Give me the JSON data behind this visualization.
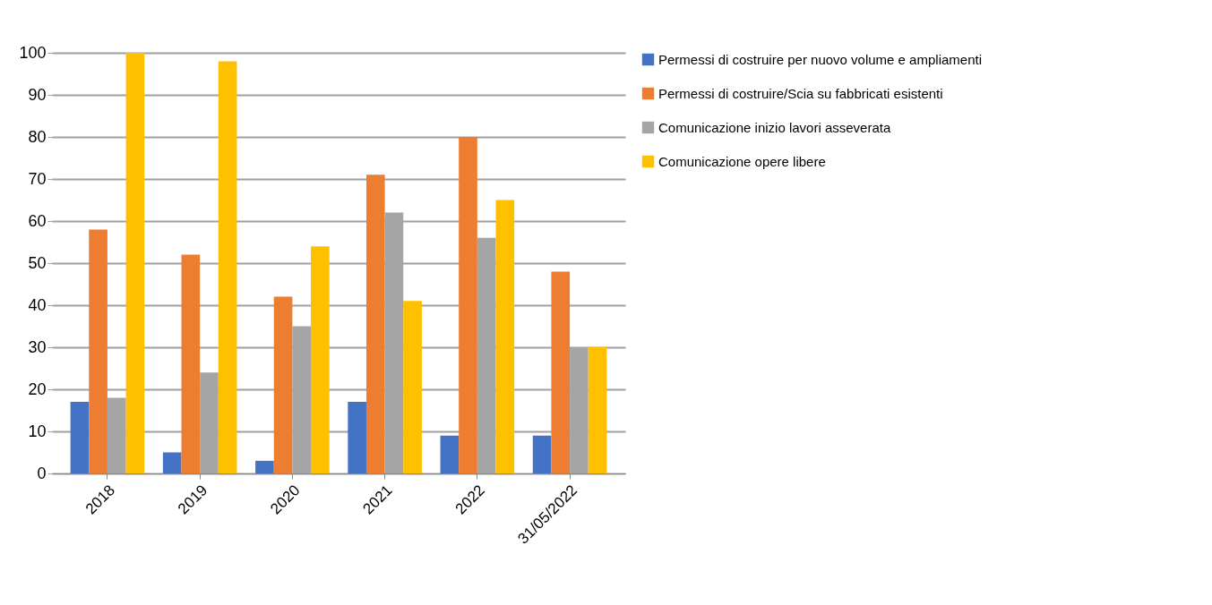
{
  "chart_data": {
    "type": "bar",
    "categories": [
      "2018",
      "2019",
      "2020",
      "2021",
      "2022",
      "31/05/2022"
    ],
    "series": [
      {
        "name": "Permessi di costruire per nuovo volume e ampliamenti",
        "color": "#4472c4",
        "values": [
          17,
          5,
          3,
          17,
          9,
          9
        ]
      },
      {
        "name": "Permessi di costruire/Scia su fabbricati esistenti",
        "color": "#ed7d31",
        "values": [
          58,
          52,
          42,
          71,
          80,
          48
        ]
      },
      {
        "name": "Comunicazione inizio lavori asseverata",
        "color": "#a5a5a5",
        "values": [
          18,
          24,
          35,
          62,
          56,
          30
        ]
      },
      {
        "name": "Comunicazione opere libere",
        "color": "#ffc000",
        "values": [
          100,
          98,
          54,
          41,
          65,
          30
        ]
      }
    ],
    "ylim": [
      0,
      100
    ],
    "yticks": [
      0,
      10,
      20,
      30,
      40,
      50,
      60,
      70,
      80,
      90,
      100
    ],
    "grid": "y",
    "legend": "right"
  }
}
